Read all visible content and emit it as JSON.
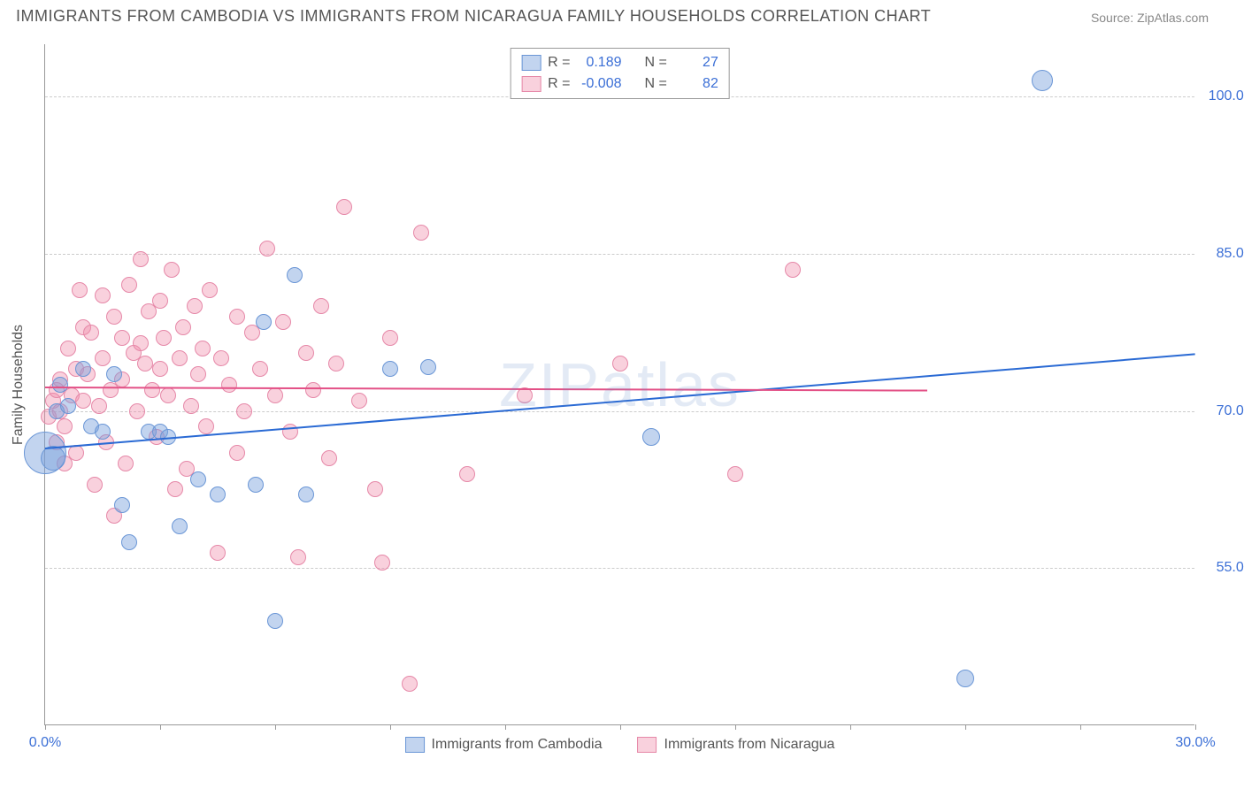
{
  "title": "IMMIGRANTS FROM CAMBODIA VS IMMIGRANTS FROM NICARAGUA FAMILY HOUSEHOLDS CORRELATION CHART",
  "source": "Source: ZipAtlas.com",
  "watermark": "ZIPatlas",
  "y_axis_label": "Family Households",
  "chart": {
    "type": "scatter",
    "xlim": [
      0,
      30
    ],
    "ylim": [
      40,
      105
    ],
    "x_ticks": [
      0,
      3,
      6,
      9,
      12,
      15,
      18,
      21,
      24,
      27,
      30
    ],
    "x_tick_labels": {
      "0": "0.0%",
      "30": "30.0%"
    },
    "y_ticks": [
      55,
      70,
      85,
      100
    ],
    "y_tick_labels": {
      "55": "55.0%",
      "70": "70.0%",
      "85": "85.0%",
      "100": "100.0%"
    },
    "grid_color": "#cccccc",
    "background": "#ffffff",
    "axis_color": "#999999",
    "tick_label_color": "#3b6fd6",
    "axis_label_color": "#555555"
  },
  "series": [
    {
      "name": "Immigrants from Cambodia",
      "color_fill": "rgba(120,160,220,0.45)",
      "color_stroke": "#6a96d6",
      "marker_radius": 9,
      "R": "0.189",
      "N": "27",
      "trend": {
        "x1": 0,
        "y1": 66.5,
        "x2": 30,
        "y2": 75.5,
        "color": "#2a6ad4",
        "width": 2
      },
      "points": [
        [
          0.0,
          66.0,
          24
        ],
        [
          0.2,
          65.5,
          14
        ],
        [
          0.3,
          70.0,
          9
        ],
        [
          0.4,
          72.5,
          9
        ],
        [
          0.6,
          70.5,
          9
        ],
        [
          1.0,
          74.0,
          9
        ],
        [
          1.2,
          68.5,
          9
        ],
        [
          1.5,
          68.0,
          9
        ],
        [
          1.8,
          73.5,
          9
        ],
        [
          2.0,
          61.0,
          9
        ],
        [
          2.2,
          57.5,
          9
        ],
        [
          2.7,
          68.0,
          9
        ],
        [
          3.0,
          68.0,
          9
        ],
        [
          3.2,
          67.5,
          9
        ],
        [
          3.5,
          59.0,
          9
        ],
        [
          4.0,
          63.5,
          9
        ],
        [
          4.5,
          62.0,
          9
        ],
        [
          5.5,
          63.0,
          9
        ],
        [
          5.7,
          78.5,
          9
        ],
        [
          6.0,
          50.0,
          9
        ],
        [
          6.5,
          83.0,
          9
        ],
        [
          6.8,
          62.0,
          9
        ],
        [
          9.0,
          74.0,
          9
        ],
        [
          10.0,
          74.2,
          9
        ],
        [
          15.8,
          67.5,
          10
        ],
        [
          24.0,
          44.5,
          10
        ],
        [
          26.0,
          101.5,
          12
        ]
      ]
    },
    {
      "name": "Immigrants from Nicaragua",
      "color_fill": "rgba(240,140,170,0.40)",
      "color_stroke": "#e688a8",
      "marker_radius": 9,
      "R": "-0.008",
      "N": "82",
      "trend": {
        "x1": 0,
        "y1": 72.3,
        "x2": 23,
        "y2": 72.0,
        "color": "#e35086",
        "width": 2
      },
      "points": [
        [
          0.1,
          69.5,
          9
        ],
        [
          0.2,
          71.0,
          9
        ],
        [
          0.3,
          72.0,
          9
        ],
        [
          0.3,
          67.0,
          9
        ],
        [
          0.4,
          70.0,
          9
        ],
        [
          0.4,
          73.0,
          9
        ],
        [
          0.5,
          68.5,
          9
        ],
        [
          0.5,
          65.0,
          9
        ],
        [
          0.6,
          76.0,
          9
        ],
        [
          0.7,
          71.5,
          9
        ],
        [
          0.8,
          74.0,
          9
        ],
        [
          0.8,
          66.0,
          9
        ],
        [
          0.9,
          81.5,
          9
        ],
        [
          1.0,
          71.0,
          9
        ],
        [
          1.0,
          78.0,
          9
        ],
        [
          1.1,
          73.5,
          9
        ],
        [
          1.2,
          77.5,
          9
        ],
        [
          1.3,
          63.0,
          9
        ],
        [
          1.4,
          70.5,
          9
        ],
        [
          1.5,
          75.0,
          9
        ],
        [
          1.5,
          81.0,
          9
        ],
        [
          1.6,
          67.0,
          9
        ],
        [
          1.7,
          72.0,
          9
        ],
        [
          1.8,
          79.0,
          9
        ],
        [
          1.8,
          60.0,
          9
        ],
        [
          2.0,
          77.0,
          9
        ],
        [
          2.0,
          73.0,
          9
        ],
        [
          2.1,
          65.0,
          9
        ],
        [
          2.2,
          82.0,
          9
        ],
        [
          2.3,
          75.5,
          9
        ],
        [
          2.4,
          70.0,
          9
        ],
        [
          2.5,
          84.5,
          9
        ],
        [
          2.5,
          76.5,
          9
        ],
        [
          2.6,
          74.5,
          9
        ],
        [
          2.7,
          79.5,
          9
        ],
        [
          2.8,
          72.0,
          9
        ],
        [
          2.9,
          67.5,
          9
        ],
        [
          3.0,
          80.5,
          9
        ],
        [
          3.0,
          74.0,
          9
        ],
        [
          3.1,
          77.0,
          9
        ],
        [
          3.2,
          71.5,
          9
        ],
        [
          3.3,
          83.5,
          9
        ],
        [
          3.4,
          62.5,
          9
        ],
        [
          3.5,
          75.0,
          9
        ],
        [
          3.6,
          78.0,
          9
        ],
        [
          3.7,
          64.5,
          9
        ],
        [
          3.8,
          70.5,
          9
        ],
        [
          3.9,
          80.0,
          9
        ],
        [
          4.0,
          73.5,
          9
        ],
        [
          4.1,
          76.0,
          9
        ],
        [
          4.2,
          68.5,
          9
        ],
        [
          4.3,
          81.5,
          9
        ],
        [
          4.5,
          56.5,
          9
        ],
        [
          4.6,
          75.0,
          9
        ],
        [
          4.8,
          72.5,
          9
        ],
        [
          5.0,
          79.0,
          9
        ],
        [
          5.0,
          66.0,
          9
        ],
        [
          5.2,
          70.0,
          9
        ],
        [
          5.4,
          77.5,
          9
        ],
        [
          5.6,
          74.0,
          9
        ],
        [
          5.8,
          85.5,
          9
        ],
        [
          6.0,
          71.5,
          9
        ],
        [
          6.2,
          78.5,
          9
        ],
        [
          6.4,
          68.0,
          9
        ],
        [
          6.6,
          56.0,
          9
        ],
        [
          6.8,
          75.5,
          9
        ],
        [
          7.0,
          72.0,
          9
        ],
        [
          7.2,
          80.0,
          9
        ],
        [
          7.4,
          65.5,
          9
        ],
        [
          7.6,
          74.5,
          9
        ],
        [
          7.8,
          89.5,
          9
        ],
        [
          8.2,
          71.0,
          9
        ],
        [
          8.6,
          62.5,
          9
        ],
        [
          8.8,
          55.5,
          9
        ],
        [
          9.0,
          77.0,
          9
        ],
        [
          9.5,
          44.0,
          9
        ],
        [
          9.8,
          87.0,
          9
        ],
        [
          11.0,
          64.0,
          9
        ],
        [
          12.5,
          71.5,
          9
        ],
        [
          15.0,
          74.5,
          9
        ],
        [
          18.0,
          64.0,
          9
        ],
        [
          19.5,
          83.5,
          9
        ]
      ]
    }
  ],
  "legend_box": {
    "r_label": "R =",
    "n_label": "N ="
  },
  "bottom_legend": {
    "items": [
      "Immigrants from Cambodia",
      "Immigrants from Nicaragua"
    ]
  }
}
